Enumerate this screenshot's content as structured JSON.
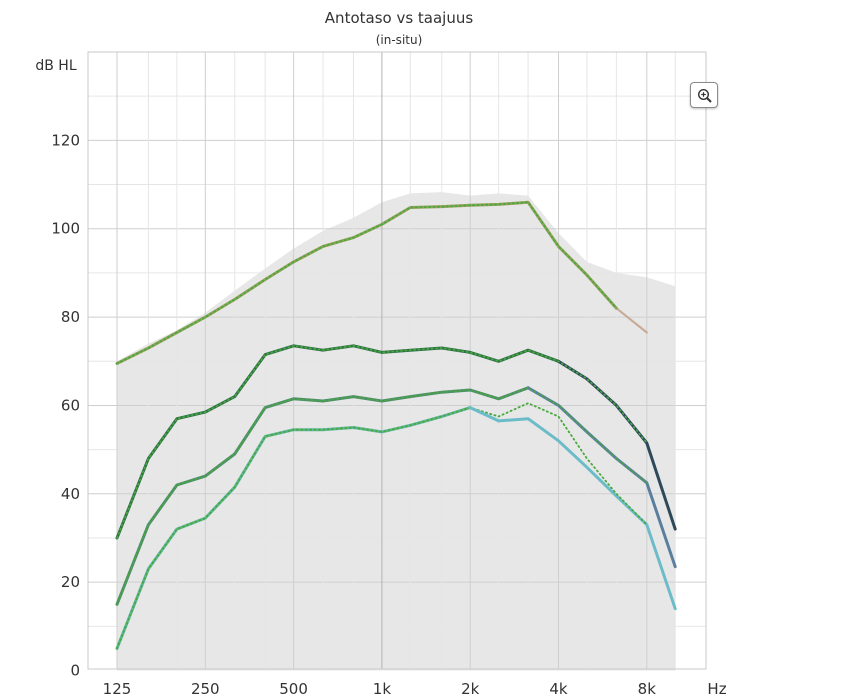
{
  "chart_data": {
    "type": "line",
    "title": "Antotaso vs taajuus",
    "subtitle": "(in-situ)",
    "ylabel": "dB HL",
    "xunit": "Hz",
    "ylim": [
      0,
      140
    ],
    "yticks": [
      0,
      20,
      40,
      60,
      80,
      100,
      120
    ],
    "x_scale": "log2",
    "x_ticks": [
      {
        "value": 125,
        "label": "125"
      },
      {
        "value": 250,
        "label": "250"
      },
      {
        "value": 500,
        "label": "500"
      },
      {
        "value": 1000,
        "label": "1k"
      },
      {
        "value": 2000,
        "label": "2k"
      },
      {
        "value": 4000,
        "label": "4k"
      },
      {
        "value": 8000,
        "label": "8k"
      }
    ],
    "grid": true,
    "x": [
      125,
      160,
      200,
      250,
      315,
      400,
      500,
      630,
      800,
      1000,
      1250,
      1600,
      2000,
      2500,
      3150,
      4000,
      5000,
      6300,
      8000,
      10000
    ],
    "max_output_region": [
      70,
      74,
      77,
      81,
      86,
      91,
      95.5,
      99.5,
      102.5,
      106,
      108,
      108.3,
      107.5,
      108,
      107.5,
      99,
      92.5,
      90,
      89,
      87
    ],
    "colors": {
      "region": "#e7e7e7",
      "region_edge": "#d6d6d6",
      "mpo": "#93a25c",
      "mpo_tail": "#c8ab98",
      "loud": "#2f7446",
      "loud_tail": "#2e4a5a",
      "medium": "#4f8e6d",
      "medium_tail": "#5a7f9e",
      "soft": "#5fb79b",
      "soft_tail": "#6bbcc8",
      "dotted": "#49a93c"
    },
    "series": [
      {
        "values": [
          69.5,
          73,
          76.5,
          80,
          84,
          88.5,
          92.5,
          96,
          98,
          101,
          104.8,
          105,
          105.3,
          105.5,
          106,
          96,
          89.5,
          82,
          76.5,
          null
        ]
      },
      {
        "values": [
          30,
          48,
          57,
          58.5,
          62,
          71.5,
          73.5,
          72.5,
          73.5,
          72,
          72.5,
          73,
          72,
          70,
          72.5,
          70,
          66,
          60,
          51.5,
          32
        ]
      },
      {
        "values": [
          15,
          33,
          42,
          44,
          49,
          59.5,
          61.5,
          61,
          62,
          61,
          62,
          63,
          63.5,
          61.5,
          64,
          60,
          54,
          48,
          42.5,
          23.5
        ]
      },
      {
        "values": [
          5,
          23,
          32,
          34.5,
          41.5,
          53,
          54.5,
          54.5,
          55,
          54,
          55.5,
          57.5,
          59.5,
          57.5,
          60.5,
          57.5,
          48,
          40,
          33,
          14
        ]
      },
      {
        "values": [
          null,
          null,
          null,
          null,
          null,
          null,
          null,
          null,
          null,
          null,
          null,
          null,
          null,
          56.5,
          57,
          52,
          46,
          39.5,
          33,
          14
        ]
      }
    ]
  }
}
